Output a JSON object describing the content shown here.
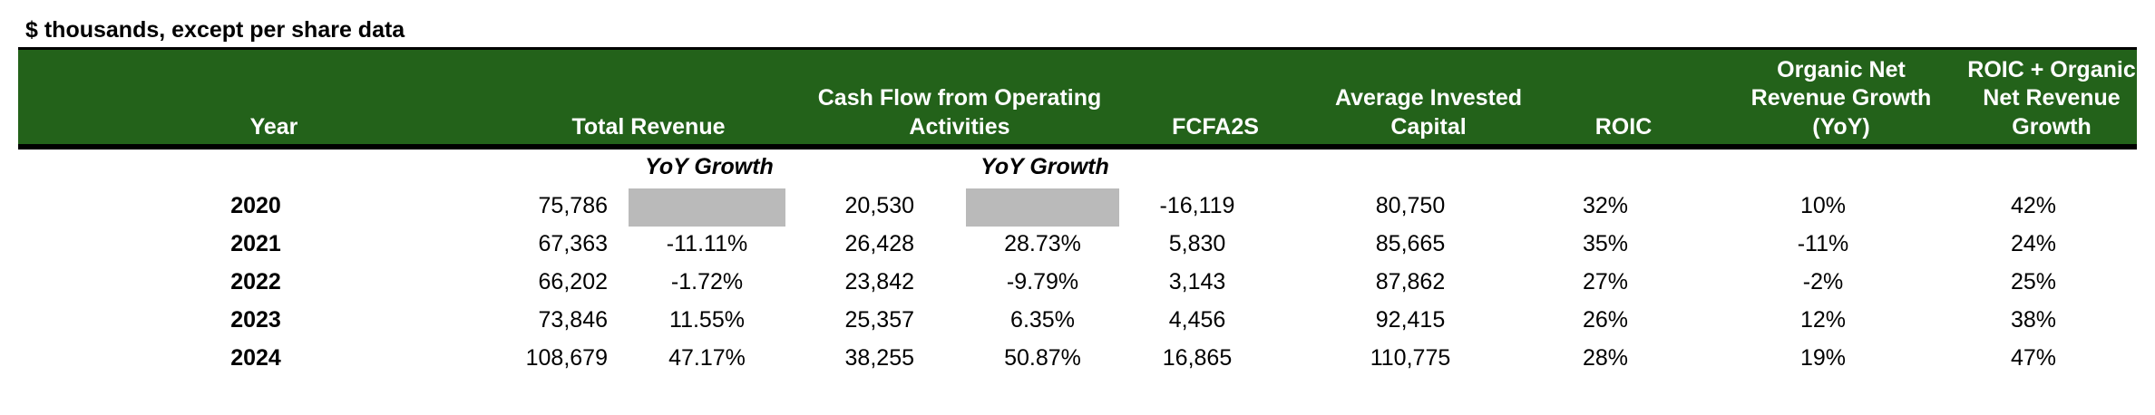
{
  "caption": "$ thousands, except per share data",
  "colors": {
    "header_bg": "#23621a",
    "header_text": "#ffffff",
    "blank_cell": "#bababa"
  },
  "headers": {
    "year": "Year",
    "total_revenue": "Total Revenue",
    "cfo": "Cash Flow from Operating\nActivities",
    "fcfa2s": "FCFA2S",
    "avg_invested_capital": "Average Invested\nCapital",
    "roic": "ROIC",
    "organic_growth": "Organic Net\nRevenue Growth\n(YoY)",
    "roic_plus_growth": "ROIC + Organic\nNet Revenue\nGrowth"
  },
  "subheaders": {
    "revenue_yoy": "YoY Growth",
    "cfo_yoy": "YoY Growth"
  },
  "rows": [
    {
      "year": "2020",
      "revenue": "75,786",
      "revenue_yoy": "",
      "cfo": "20,530",
      "cfo_yoy": "",
      "fcfa2s": "-16,119",
      "aic": "80,750",
      "roic": "32%",
      "organic": "10%",
      "combined": "42%"
    },
    {
      "year": "2021",
      "revenue": "67,363",
      "revenue_yoy": "-11.11%",
      "cfo": "26,428",
      "cfo_yoy": "28.73%",
      "fcfa2s": "5,830",
      "aic": "85,665",
      "roic": "35%",
      "organic": "-11%",
      "combined": "24%"
    },
    {
      "year": "2022",
      "revenue": "66,202",
      "revenue_yoy": "-1.72%",
      "cfo": "23,842",
      "cfo_yoy": "-9.79%",
      "fcfa2s": "3,143",
      "aic": "87,862",
      "roic": "27%",
      "organic": "-2%",
      "combined": "25%"
    },
    {
      "year": "2023",
      "revenue": "73,846",
      "revenue_yoy": "11.55%",
      "cfo": "25,357",
      "cfo_yoy": "6.35%",
      "fcfa2s": "4,456",
      "aic": "92,415",
      "roic": "26%",
      "organic": "12%",
      "combined": "38%"
    },
    {
      "year": "2024",
      "revenue": "108,679",
      "revenue_yoy": "47.17%",
      "cfo": "38,255",
      "cfo_yoy": "50.87%",
      "fcfa2s": "16,865",
      "aic": "110,775",
      "roic": "28%",
      "organic": "19%",
      "combined": "47%"
    }
  ]
}
